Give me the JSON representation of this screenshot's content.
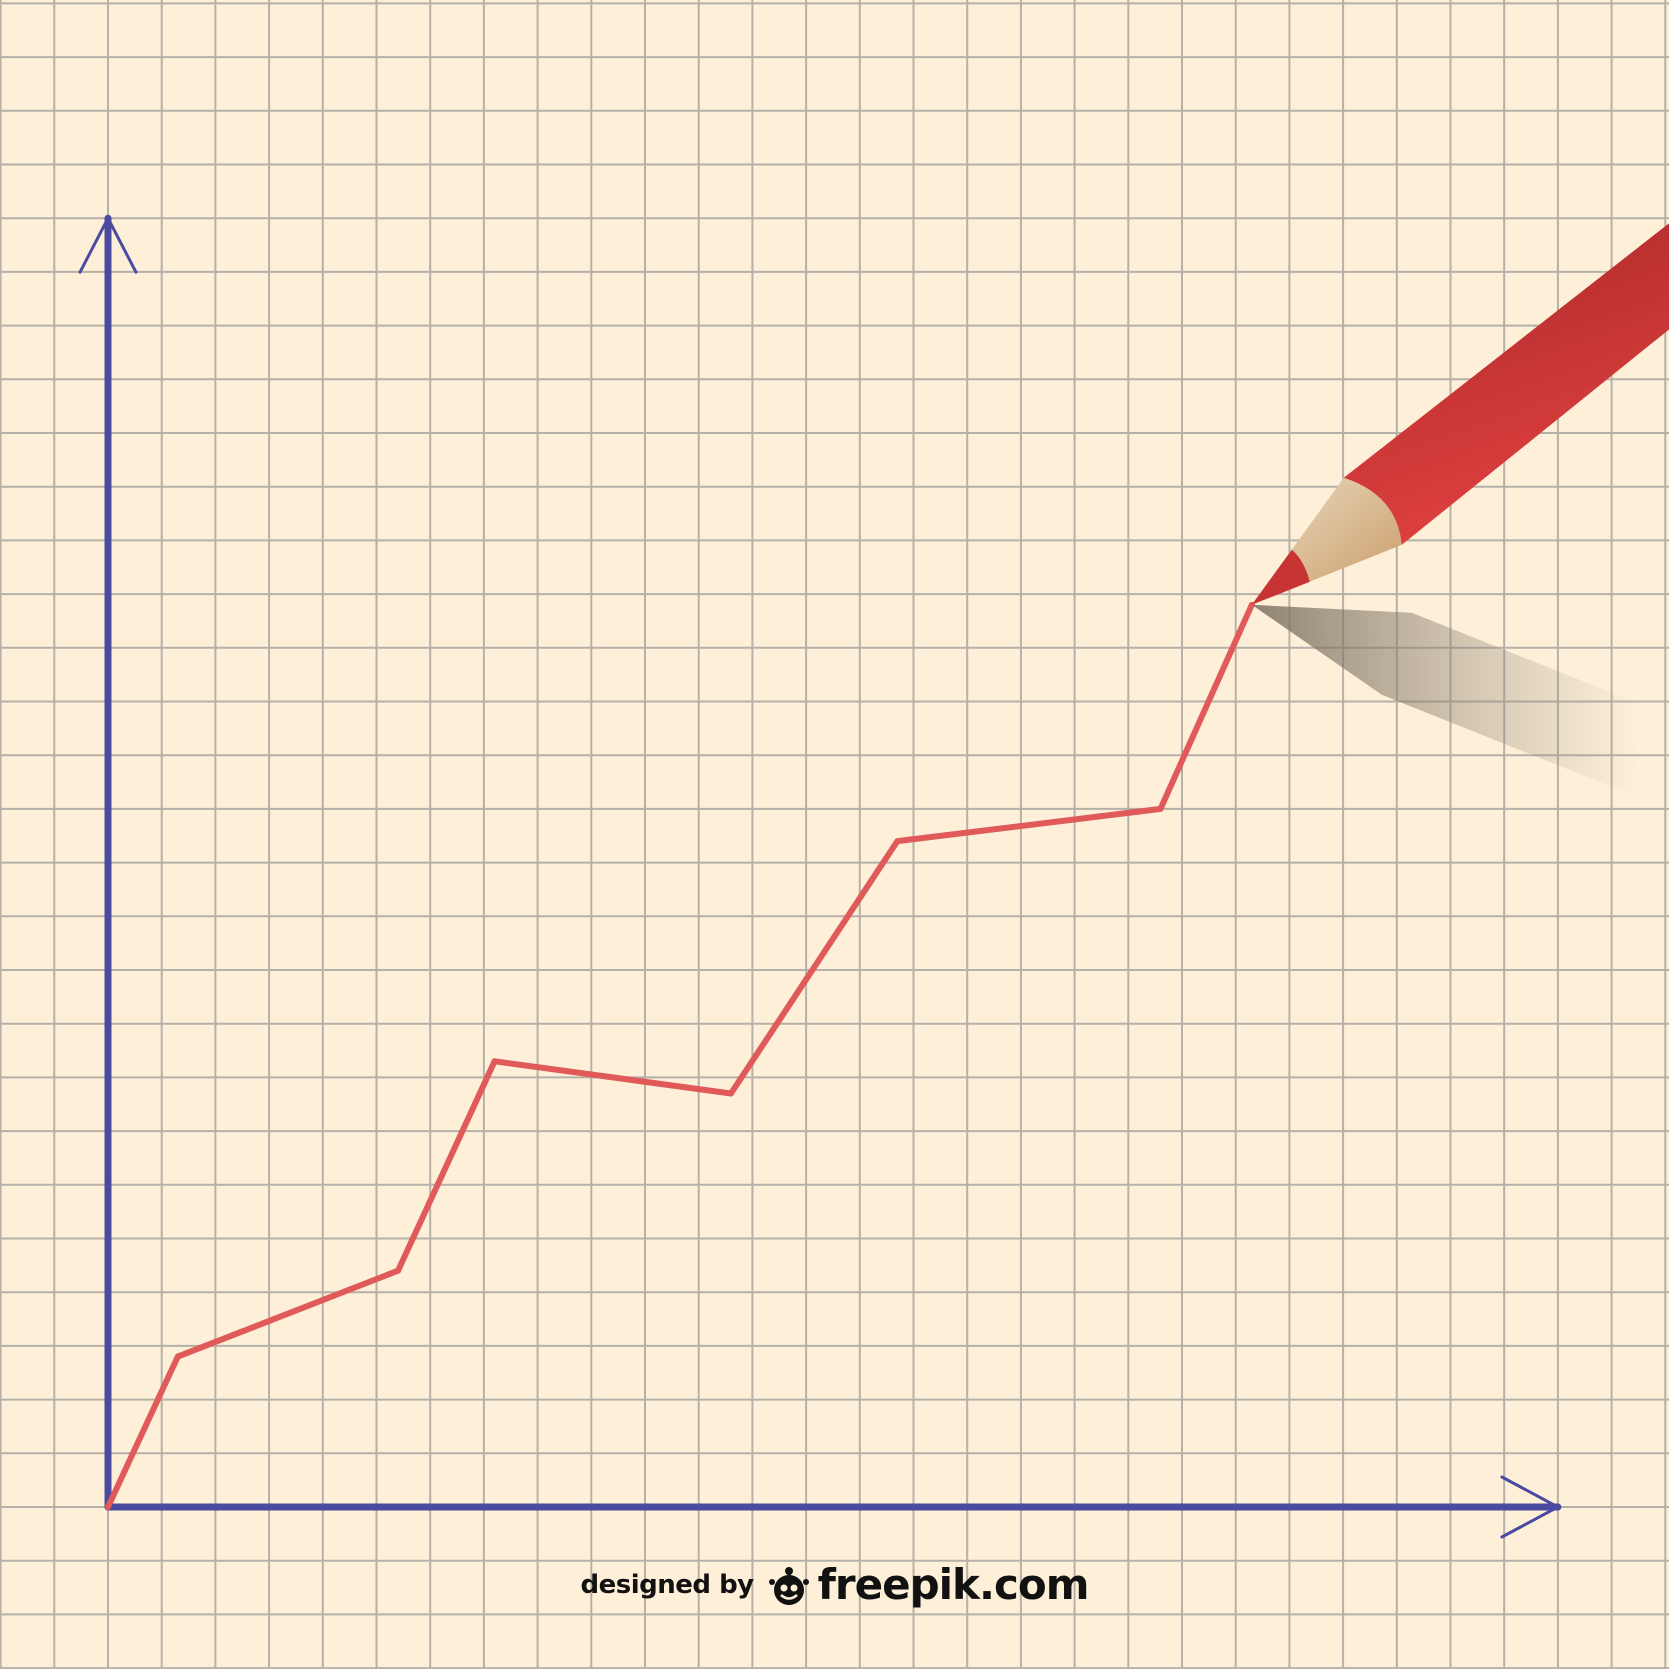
{
  "chart_data": {
    "type": "line",
    "title": "",
    "xlabel": "",
    "ylabel": "",
    "grid": true,
    "legend": "none",
    "xlim": [
      0,
      27
    ],
    "ylim": [
      0,
      24
    ],
    "x": [
      0,
      1.3,
      5.4,
      7.2,
      11.6,
      14.7,
      19.6,
      21.3
    ],
    "series": [
      {
        "values": [
          0,
          2.8,
          4.4,
          8.3,
          7.7,
          12.4,
          13.0,
          16.8
        ]
      }
    ]
  },
  "colors": {
    "background": "#fef0d8",
    "grid": "#b5b0a8",
    "axis": "#4a4aa0",
    "line": "#e05a5a",
    "pencil_body": "#c83434",
    "pencil_wood": "#d9b98c"
  },
  "icons": {
    "pencil": "red-pencil-icon",
    "logo": "freepik-logo-icon"
  },
  "credit": {
    "prefix": "designed by",
    "brand": "freepik.com"
  }
}
